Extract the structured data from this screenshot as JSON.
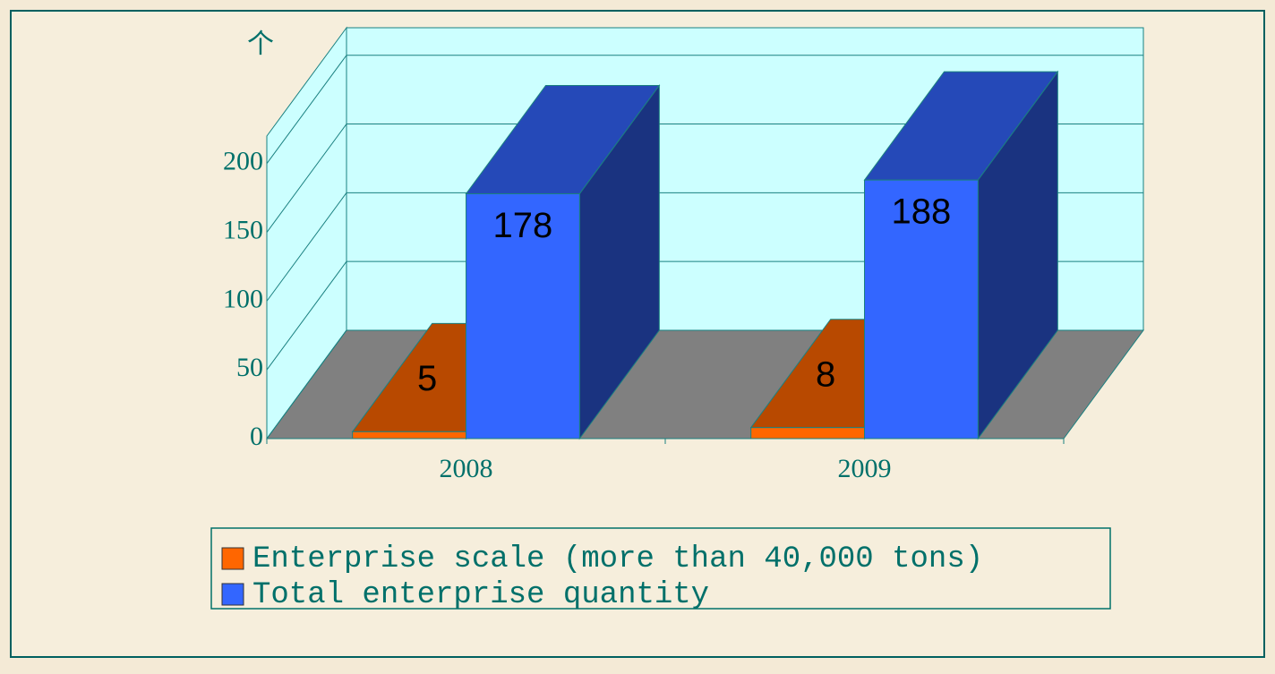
{
  "chart_data": {
    "type": "bar3d",
    "y_label": "个",
    "categories": [
      "2008",
      "2009"
    ],
    "series": [
      {
        "name": "Enterprise scale (more than 40,000 tons)",
        "color": "#ff6600",
        "values": [
          5,
          8
        ]
      },
      {
        "name": "Total enterprise quantity",
        "color": "#3366ff",
        "values": [
          178,
          188
        ]
      }
    ],
    "ylim": [
      0,
      220
    ],
    "yticks": [
      0,
      50,
      100,
      150,
      200
    ],
    "grid": true,
    "legend": "bottom"
  }
}
